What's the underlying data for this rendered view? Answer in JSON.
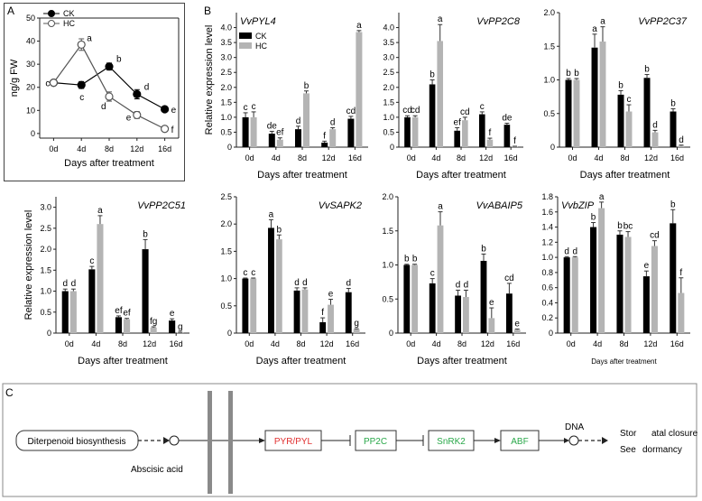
{
  "panel_labels": {
    "a": "A",
    "b": "B",
    "c": "C"
  },
  "colors": {
    "ck": "#000000",
    "hc": "#b4b4b4",
    "red": "#e03030",
    "green": "#2aa84a"
  },
  "chart_data": [
    {
      "id": "A",
      "type": "line",
      "title": "",
      "xlabel": "Days after treatment",
      "ylabel": "ng/g FW",
      "categories": [
        "0d",
        "4d",
        "8d",
        "12d",
        "16d"
      ],
      "ylim": [
        -2,
        50
      ],
      "yticks": [
        0,
        10,
        20,
        30,
        40,
        50
      ],
      "legend": [
        "CK",
        "HC"
      ],
      "series": [
        {
          "name": "CK",
          "values": [
            22,
            21,
            29,
            17,
            10.5
          ],
          "errors": [
            0,
            1.5,
            1.5,
            2,
            1
          ],
          "labels": [
            "c",
            "c",
            "b",
            "d",
            "e"
          ]
        },
        {
          "name": "HC",
          "values": [
            22,
            38.5,
            16,
            8,
            2
          ],
          "errors": [
            0,
            2.5,
            2,
            1.5,
            0.8
          ],
          "labels": [
            "c",
            "a",
            "d",
            "e",
            "f"
          ]
        }
      ]
    },
    {
      "id": "PYL4",
      "type": "bar",
      "title": "VvPYL4",
      "xlabel": "Days after treatment",
      "ylabel": "Relative expression level",
      "categories": [
        "0d",
        "4d",
        "8d",
        "12d",
        "16d"
      ],
      "ylim": [
        0,
        4.5
      ],
      "yticks": [
        0,
        0.5,
        1.0,
        1.5,
        2.0,
        2.5,
        3.0,
        3.5,
        4.0
      ],
      "legend": [
        "CK",
        "HC"
      ],
      "series": [
        {
          "name": "CK",
          "values": [
            1.0,
            0.45,
            0.6,
            0.15,
            0.95
          ],
          "errors": [
            0.15,
            0.08,
            0.1,
            0.05,
            0.08
          ],
          "labels": [
            "c",
            "de",
            "d",
            "f",
            "cd"
          ]
        },
        {
          "name": "HC",
          "values": [
            1.0,
            0.25,
            1.8,
            0.6,
            3.85
          ],
          "errors": [
            0.18,
            0.06,
            0.08,
            0.05,
            0.05
          ],
          "labels": [
            "c",
            "ef",
            "b",
            "d",
            "a"
          ]
        }
      ]
    },
    {
      "id": "PP2C8",
      "type": "bar",
      "title": "VvPP2C8",
      "xlabel": "Days after treatment",
      "ylabel": "",
      "categories": [
        "0d",
        "4d",
        "8d",
        "12d",
        "16d"
      ],
      "ylim": [
        0,
        4.5
      ],
      "yticks": [
        0,
        0.5,
        1.0,
        1.5,
        2.0,
        2.5,
        3.0,
        3.5,
        4.0
      ],
      "series": [
        {
          "name": "CK",
          "values": [
            1.0,
            2.1,
            0.55,
            1.1,
            0.75
          ],
          "errors": [
            0.05,
            0.15,
            0.1,
            0.08,
            0.05
          ],
          "labels": [
            "cd",
            "b",
            "ef",
            "c",
            "de"
          ]
        },
        {
          "name": "HC",
          "values": [
            1.0,
            3.55,
            0.9,
            0.25,
            0.02
          ],
          "errors": [
            0.05,
            0.55,
            0.1,
            0.05,
            0.01
          ],
          "labels": [
            "cd",
            "a",
            "cd",
            "f",
            "f"
          ]
        }
      ]
    },
    {
      "id": "PP2C37",
      "type": "bar",
      "title": "VvPP2C37",
      "xlabel": "Days after treatment",
      "ylabel": "",
      "categories": [
        "0d",
        "4d",
        "8d",
        "12d",
        "16d"
      ],
      "ylim": [
        0,
        2.0
      ],
      "yticks": [
        0,
        0.5,
        1.0,
        1.5,
        2.0
      ],
      "series": [
        {
          "name": "CK",
          "values": [
            1.0,
            1.48,
            0.78,
            1.03,
            0.53
          ],
          "errors": [
            0.02,
            0.2,
            0.06,
            0.05,
            0.04
          ],
          "labels": [
            "b",
            "a",
            "b",
            "b",
            "b"
          ]
        },
        {
          "name": "HC",
          "values": [
            1.0,
            1.57,
            0.53,
            0.22,
            0.02
          ],
          "errors": [
            0.02,
            0.22,
            0.1,
            0.03,
            0.01
          ],
          "labels": [
            "b",
            "a",
            "c",
            "d",
            "d"
          ]
        }
      ]
    },
    {
      "id": "PP2C51",
      "type": "bar",
      "title": "VvPP2C51",
      "xlabel": "Days after treatment",
      "ylabel": "Relative expression level",
      "categories": [
        "0d",
        "4d",
        "8d",
        "12d",
        "16d"
      ],
      "ylim": [
        0,
        3.25
      ],
      "yticks": [
        0,
        0.5,
        1.0,
        1.5,
        2.0,
        2.5,
        3.0
      ],
      "series": [
        {
          "name": "CK",
          "values": [
            1.0,
            1.52,
            0.38,
            2.0,
            0.3
          ],
          "errors": [
            0.05,
            0.07,
            0.03,
            0.23,
            0.04
          ],
          "labels": [
            "d",
            "c",
            "ef",
            "b",
            "e"
          ]
        },
        {
          "name": "HC",
          "values": [
            1.0,
            2.6,
            0.33,
            0.13,
            0.01
          ],
          "errors": [
            0.05,
            0.2,
            0.02,
            0.02,
            0.01
          ],
          "labels": [
            "d",
            "a",
            "ef",
            "fg",
            "g"
          ]
        }
      ]
    },
    {
      "id": "SAPK2",
      "type": "bar",
      "title": "VvSAPK2",
      "xlabel": "Days after treatment",
      "ylabel": "",
      "categories": [
        "0d",
        "4d",
        "8d",
        "12d",
        "16d"
      ],
      "ylim": [
        0,
        2.5
      ],
      "yticks": [
        0,
        0.5,
        1.0,
        1.5,
        2.0,
        2.5
      ],
      "series": [
        {
          "name": "CK",
          "values": [
            1.0,
            1.93,
            0.78,
            0.2,
            0.75
          ],
          "errors": [
            0.01,
            0.15,
            0.05,
            0.08,
            0.07
          ],
          "labels": [
            "c",
            "a",
            "d",
            "f",
            "d"
          ]
        },
        {
          "name": "HC",
          "values": [
            1.0,
            1.72,
            0.8,
            0.52,
            0.07
          ],
          "errors": [
            0.01,
            0.08,
            0.03,
            0.1,
            0.01
          ],
          "labels": [
            "c",
            "b",
            "d",
            "e",
            "g"
          ]
        }
      ]
    },
    {
      "id": "ABAIP5",
      "type": "bar",
      "title": "VvABAIP5",
      "xlabel": "Days after treatment",
      "ylabel": "",
      "categories": [
        "0d",
        "4d",
        "8d",
        "12d",
        "16d"
      ],
      "ylim": [
        0,
        2.0
      ],
      "yticks": [
        0,
        0.5,
        1.0,
        1.5,
        2.0
      ],
      "series": [
        {
          "name": "CK",
          "values": [
            1.0,
            0.73,
            0.55,
            1.06,
            0.58
          ],
          "errors": [
            0.01,
            0.07,
            0.08,
            0.1,
            0.15
          ],
          "labels": [
            "b",
            "c",
            "d",
            "b",
            "cd"
          ]
        },
        {
          "name": "HC",
          "values": [
            1.0,
            1.58,
            0.53,
            0.22,
            0.05
          ],
          "errors": [
            0.01,
            0.2,
            0.1,
            0.15,
            0.01
          ],
          "labels": [
            "b",
            "a",
            "d",
            "e",
            "e"
          ]
        }
      ]
    },
    {
      "id": "bZIP",
      "type": "bar",
      "title": "VvbZIP",
      "xlabel": "Days after treatment",
      "ylabel": "",
      "categories": [
        "0d",
        "4d",
        "8d",
        "12d",
        "16d"
      ],
      "ylim": [
        0,
        1.8
      ],
      "yticks": [
        0,
        0.2,
        0.4,
        0.6,
        0.8,
        1.0,
        1.2,
        1.4,
        1.6,
        1.8
      ],
      "series": [
        {
          "name": "CK",
          "values": [
            1.0,
            1.4,
            1.3,
            0.75,
            1.45
          ],
          "errors": [
            0.01,
            0.06,
            0.05,
            0.07,
            0.18
          ],
          "labels": [
            "d",
            "b",
            "b",
            "e",
            "b"
          ]
        },
        {
          "name": "HC",
          "values": [
            1.0,
            1.65,
            1.27,
            1.15,
            0.53
          ],
          "errors": [
            0.01,
            0.08,
            0.07,
            0.07,
            0.2
          ],
          "labels": [
            "d",
            "a",
            "bc",
            "cd",
            "f"
          ]
        }
      ]
    }
  ],
  "pathway": {
    "diterpenoid": "Diterpenoid biosynthesis",
    "aba": "Abscisic acid",
    "pyr": "PYR/PYL",
    "pp2c": "PP2C",
    "snrk2": "SnRK2",
    "abf": "ABF",
    "dna": "DNA",
    "out1a": "Stor",
    "out1b": "atal closure",
    "out2a": "See",
    "out2b": "dormancy"
  }
}
